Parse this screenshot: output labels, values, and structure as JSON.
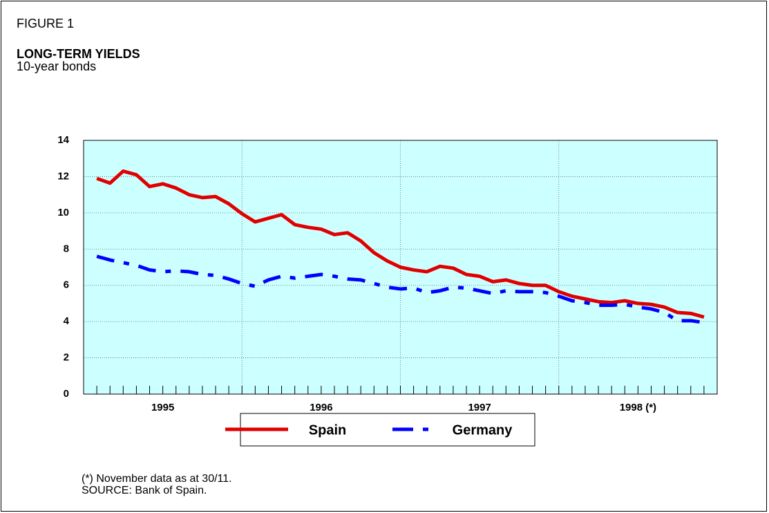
{
  "chart_data": {
    "type": "line",
    "label": "FIGURE 1",
    "title": "LONG-TERM YIELDS",
    "subtitle": "10-year bonds",
    "notes": [
      "(*) November data as at 30/11.",
      "SOURCE: Bank of Spain."
    ],
    "x": [
      1,
      2,
      3,
      4,
      5,
      6,
      7,
      8,
      9,
      10,
      11,
      12,
      13,
      14,
      15,
      16,
      17,
      18,
      19,
      20,
      21,
      22,
      23,
      24,
      25,
      26,
      27,
      28,
      29,
      30,
      31,
      32,
      33,
      34,
      35,
      36,
      37,
      38,
      39,
      40,
      41,
      42,
      43,
      44,
      45,
      46,
      47
    ],
    "xlim": [
      0,
      48
    ],
    "xticks": [
      {
        "value": 6,
        "label": "1995"
      },
      {
        "value": 18,
        "label": "1996"
      },
      {
        "value": 30,
        "label": "1997"
      },
      {
        "value": 42,
        "label": "1998 (*)"
      }
    ],
    "x_gridlines": [
      12,
      24,
      36
    ],
    "ylim": [
      0,
      14
    ],
    "yticks": [
      0,
      2,
      4,
      6,
      8,
      10,
      12,
      14
    ],
    "grid": true,
    "background": "#ccffff",
    "legend": "bottom",
    "series": [
      {
        "name": "Spain",
        "color": "#e00000",
        "dash": "solid",
        "values": [
          11.9,
          11.64,
          12.3,
          12.1,
          11.45,
          11.6,
          11.37,
          11.0,
          10.84,
          10.9,
          10.5,
          9.95,
          9.5,
          9.7,
          9.9,
          9.35,
          9.2,
          9.1,
          8.8,
          8.9,
          8.45,
          7.8,
          7.35,
          7.0,
          6.85,
          6.75,
          7.05,
          6.95,
          6.6,
          6.5,
          6.2,
          6.3,
          6.1,
          6.0,
          6.0,
          5.65,
          5.4,
          5.25,
          5.1,
          5.05,
          5.15,
          5.0,
          4.95,
          4.8,
          4.5,
          4.45,
          4.25
        ]
      },
      {
        "name": "Germany",
        "color": "#0000ff",
        "dash": "dashed",
        "values": [
          7.6,
          7.4,
          7.25,
          7.1,
          6.85,
          6.75,
          6.8,
          6.75,
          6.6,
          6.55,
          6.35,
          6.1,
          5.95,
          6.3,
          6.5,
          6.4,
          6.5,
          6.6,
          6.5,
          6.35,
          6.3,
          6.1,
          5.9,
          5.8,
          5.85,
          5.6,
          5.7,
          5.9,
          5.85,
          5.7,
          5.55,
          5.7,
          5.65,
          5.65,
          5.6,
          5.4,
          5.15,
          5.05,
          4.9,
          4.9,
          4.95,
          4.8,
          4.7,
          4.5,
          4.05,
          4.05,
          3.95
        ]
      }
    ]
  }
}
